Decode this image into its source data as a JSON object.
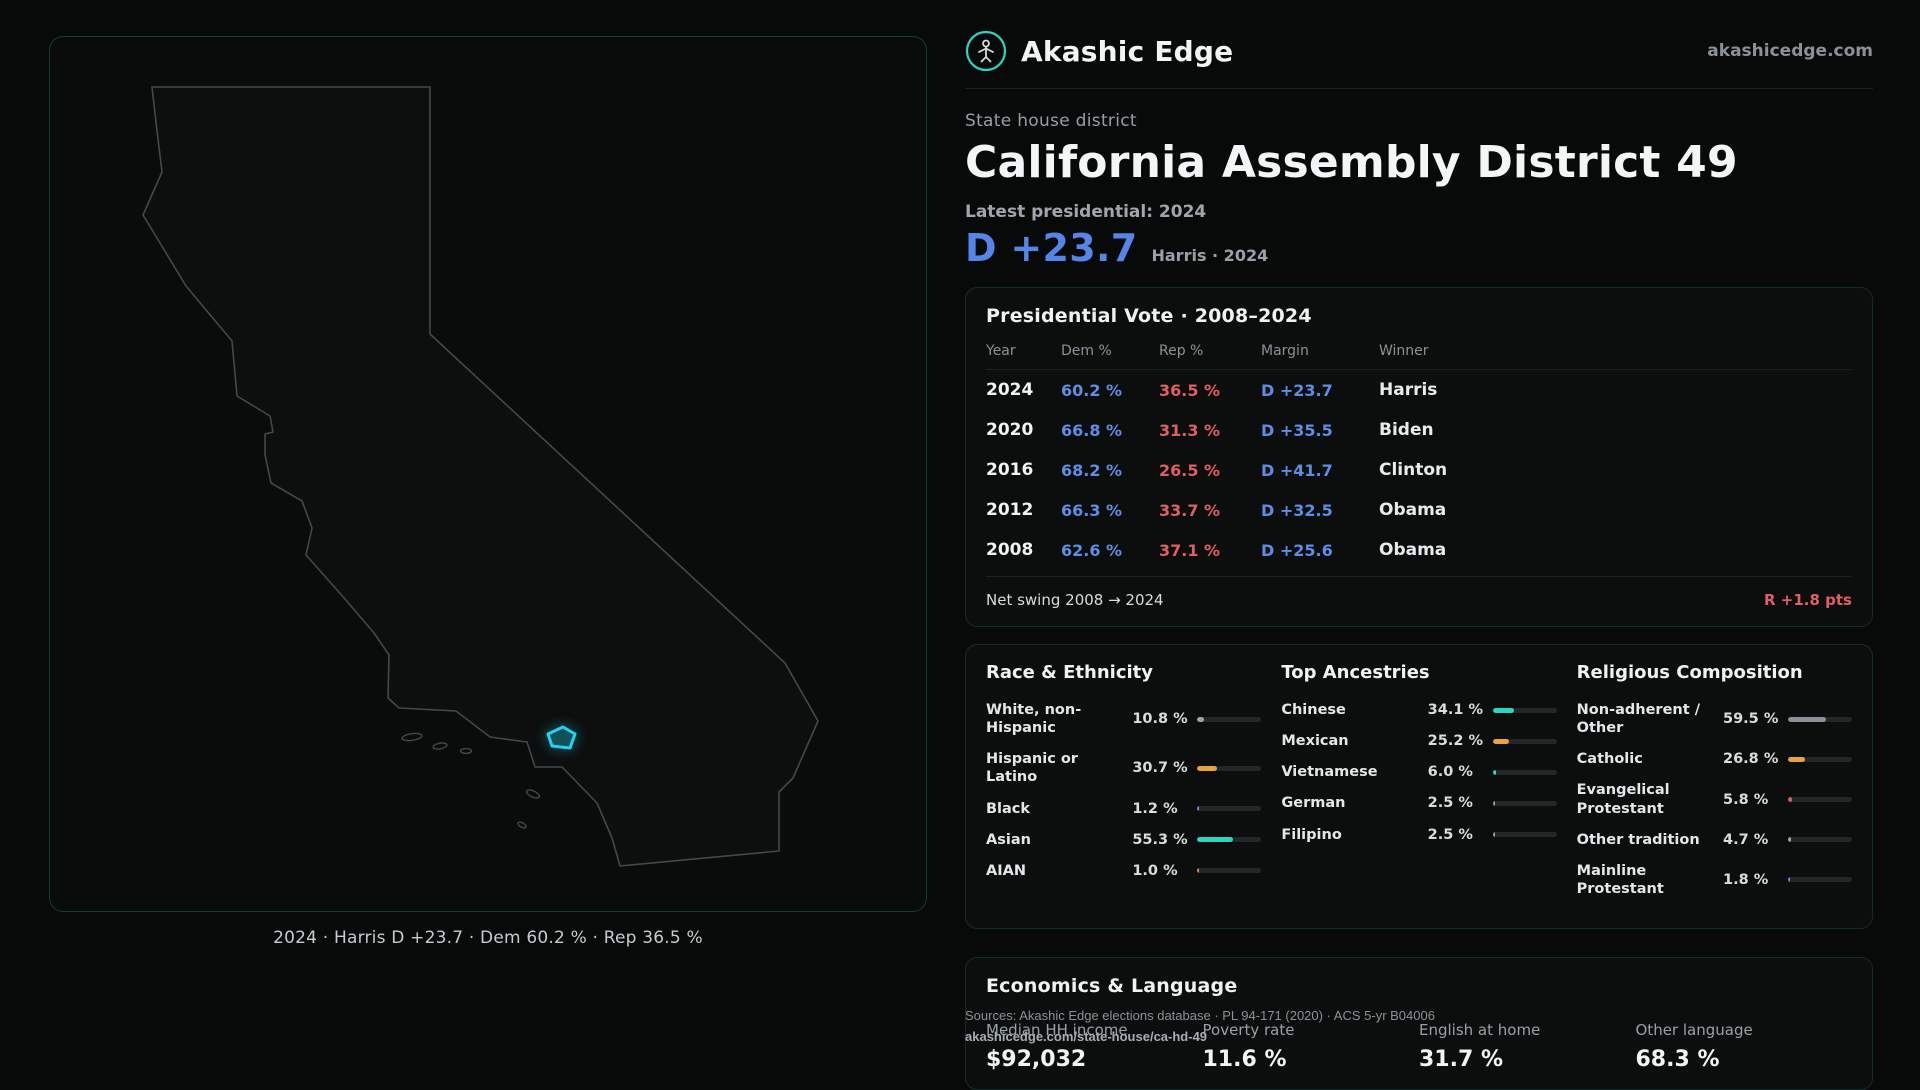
{
  "colors": {
    "accent_teal": "#2dd4bf",
    "district_cyan": "#22d3ee",
    "dem_blue": "#5d8ee6",
    "rep_red": "#e05e64",
    "bar_orange": "#e8a33d",
    "bar_gray": "#9ca3af"
  },
  "header": {
    "brand": "Akashic Edge",
    "domain": "akashicedge.com"
  },
  "map": {
    "caption": "2024 · Harris D +23.7 · Dem 60.2 % · Rep 36.5 %"
  },
  "district": {
    "eyebrow": "State house district",
    "title": "California Assembly District 49",
    "latest_label": "Latest presidential: 2024",
    "hero_margin": "D +23.7",
    "hero_note": "Harris · 2024"
  },
  "presidential": {
    "title": "Presidential Vote · 2008–2024",
    "columns": [
      "Year",
      "Dem %",
      "Rep %",
      "Margin",
      "Winner"
    ],
    "rows": [
      {
        "year": "2024",
        "dem": "60.2 %",
        "rep": "36.5 %",
        "margin": "D +23.7",
        "winner": "Harris"
      },
      {
        "year": "2020",
        "dem": "66.8 %",
        "rep": "31.3 %",
        "margin": "D +35.5",
        "winner": "Biden"
      },
      {
        "year": "2016",
        "dem": "68.2 %",
        "rep": "26.5 %",
        "margin": "D +41.7",
        "winner": "Clinton"
      },
      {
        "year": "2012",
        "dem": "66.3 %",
        "rep": "33.7 %",
        "margin": "D +32.5",
        "winner": "Obama"
      },
      {
        "year": "2008",
        "dem": "62.6 %",
        "rep": "37.1 %",
        "margin": "D +25.6",
        "winner": "Obama"
      }
    ],
    "net_swing_label": "Net swing 2008 → 2024",
    "net_swing_value": "R +1.8 pts"
  },
  "demographics": {
    "race": {
      "title": "Race & Ethnicity",
      "rows": [
        {
          "label": "White, non-Hispanic",
          "value": "10.8 %",
          "pct": 10.8,
          "color": "#9ca3af"
        },
        {
          "label": "Hispanic or Latino",
          "value": "30.7 %",
          "pct": 30.7,
          "color": "#e8a33d"
        },
        {
          "label": "Black",
          "value": "1.2 %",
          "pct": 1.2,
          "color": "#7c7ff2"
        },
        {
          "label": "Asian",
          "value": "55.3 %",
          "pct": 55.3,
          "color": "#2dd4bf"
        },
        {
          "label": "AIAN",
          "value": "1.0 %",
          "pct": 1.0,
          "color": "#e8845a"
        }
      ]
    },
    "ancestries": {
      "title": "Top Ancestries",
      "rows": [
        {
          "label": "Chinese",
          "value": "34.1 %",
          "pct": 34.1,
          "color": "#2dd4bf"
        },
        {
          "label": "Mexican",
          "value": "25.2 %",
          "pct": 25.2,
          "color": "#e8a33d"
        },
        {
          "label": "Vietnamese",
          "value": "6.0 %",
          "pct": 6.0,
          "color": "#2dd4bf"
        },
        {
          "label": "German",
          "value": "2.5 %",
          "pct": 2.5,
          "color": "#9ca3af"
        },
        {
          "label": "Filipino",
          "value": "2.5 %",
          "pct": 2.5,
          "color": "#9ca3af"
        }
      ]
    },
    "religion": {
      "title": "Religious Composition",
      "rows": [
        {
          "label": "Non-adherent / Other",
          "value": "59.5 %",
          "pct": 59.5,
          "color": "#8a9098"
        },
        {
          "label": "Catholic",
          "value": "26.8 %",
          "pct": 26.8,
          "color": "#e8a33d"
        },
        {
          "label": "Evangelical Protestant",
          "value": "5.8 %",
          "pct": 5.8,
          "color": "#e0565e"
        },
        {
          "label": "Other tradition",
          "value": "4.7 %",
          "pct": 4.7,
          "color": "#9ca3af"
        },
        {
          "label": "Mainline Protestant",
          "value": "1.8 %",
          "pct": 1.8,
          "color": "#5d8ee6"
        }
      ]
    }
  },
  "economics": {
    "title": "Economics & Language",
    "stats": [
      {
        "label": "Median HH income",
        "value": "$92,032"
      },
      {
        "label": "Poverty rate",
        "value": "11.6 %"
      },
      {
        "label": "English at home",
        "value": "31.7 %"
      },
      {
        "label": "Other language",
        "value": "68.3 %"
      }
    ]
  },
  "sources": {
    "line1": "Sources: Akashic Edge elections database · PL 94-171 (2020) · ACS 5-yr B04006",
    "line2": "akashicedge.com/state-house/ca-hd-49"
  }
}
